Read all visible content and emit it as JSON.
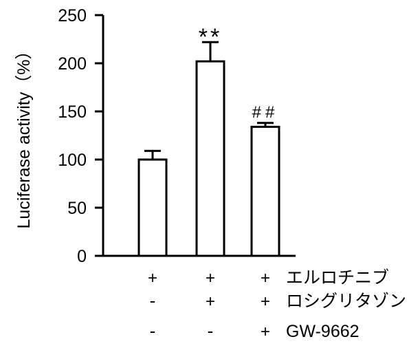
{
  "chart_data": {
    "type": "bar",
    "ylabel": "Luciferase activity（%）",
    "ylim": [
      0,
      250
    ],
    "yticks": [
      0,
      50,
      100,
      150,
      200,
      250
    ],
    "grid": false,
    "bars": [
      {
        "value": 100,
        "error": 9,
        "annotation": ""
      },
      {
        "value": 202,
        "error": 20,
        "annotation": "**"
      },
      {
        "value": 134,
        "error": 4,
        "annotation": "##"
      }
    ],
    "treatment_rows": [
      {
        "label": "エルロチニブ",
        "signs": [
          "+",
          "+",
          "+"
        ]
      },
      {
        "label": "ロシグリタゾン",
        "signs": [
          "-",
          "+",
          "+"
        ]
      },
      {
        "label": "GW-9662",
        "signs": [
          "-",
          "-",
          "+"
        ]
      }
    ],
    "colors": {
      "bar_fill": "#ffffff",
      "stroke": "#000000"
    }
  }
}
